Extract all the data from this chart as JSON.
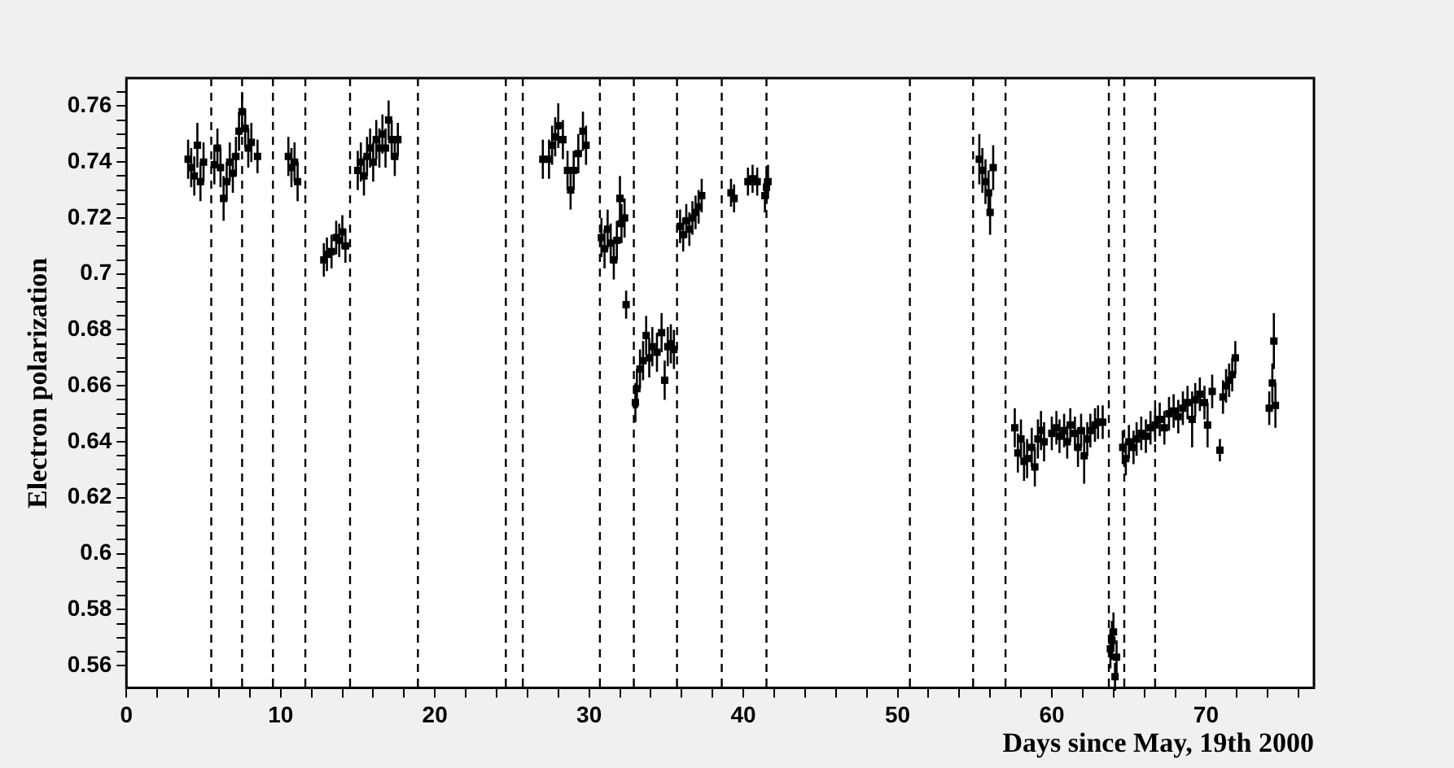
{
  "chart_data": {
    "type": "scatter",
    "xlabel": "Days since May, 19th 2000",
    "ylabel": "Electron polarization",
    "marker": "square",
    "legend": false,
    "grid": false,
    "xlim": [
      0,
      77
    ],
    "ylim": [
      0.552,
      0.77
    ],
    "xticks": [
      0,
      {
        "value": 2,
        "label": null
      },
      {
        "value": 4,
        "label": null
      },
      {
        "value": 6,
        "label": null
      },
      {
        "value": 8,
        "label": null
      },
      10,
      {
        "value": 12,
        "label": null
      },
      {
        "value": 14,
        "label": null
      },
      {
        "value": 16,
        "label": null
      },
      {
        "value": 18,
        "label": null
      },
      20,
      {
        "value": 22,
        "label": null
      },
      {
        "value": 24,
        "label": null
      },
      {
        "value": 26,
        "label": null
      },
      {
        "value": 28,
        "label": null
      },
      30,
      {
        "value": 32,
        "label": null
      },
      {
        "value": 34,
        "label": null
      },
      {
        "value": 36,
        "label": null
      },
      {
        "value": 38,
        "label": null
      },
      40,
      {
        "value": 42,
        "label": null
      },
      {
        "value": 44,
        "label": null
      },
      {
        "value": 46,
        "label": null
      },
      {
        "value": 48,
        "label": null
      },
      50,
      {
        "value": 52,
        "label": null
      },
      {
        "value": 54,
        "label": null
      },
      {
        "value": 56,
        "label": null
      },
      {
        "value": 58,
        "label": null
      },
      60,
      {
        "value": 62,
        "label": null
      },
      {
        "value": 64,
        "label": null
      },
      {
        "value": 66,
        "label": null
      },
      {
        "value": 68,
        "label": null
      },
      70,
      {
        "value": 72,
        "label": null
      },
      {
        "value": 74,
        "label": null
      },
      {
        "value": 76,
        "label": null
      }
    ],
    "yticks": [
      0.56,
      {
        "value": 0.565,
        "label": null
      },
      {
        "value": 0.57,
        "label": null
      },
      {
        "value": 0.575,
        "label": null
      },
      0.58,
      {
        "value": 0.585,
        "label": null
      },
      {
        "value": 0.59,
        "label": null
      },
      {
        "value": 0.595,
        "label": null
      },
      0.6,
      {
        "value": 0.605,
        "label": null
      },
      {
        "value": 0.61,
        "label": null
      },
      {
        "value": 0.615,
        "label": null
      },
      0.62,
      {
        "value": 0.625,
        "label": null
      },
      {
        "value": 0.63,
        "label": null
      },
      {
        "value": 0.635,
        "label": null
      },
      0.64,
      {
        "value": 0.645,
        "label": null
      },
      {
        "value": 0.65,
        "label": null
      },
      {
        "value": 0.655,
        "label": null
      },
      0.66,
      {
        "value": 0.665,
        "label": null
      },
      {
        "value": 0.67,
        "label": null
      },
      {
        "value": 0.675,
        "label": null
      },
      0.68,
      {
        "value": 0.685,
        "label": null
      },
      {
        "value": 0.69,
        "label": null
      },
      {
        "value": 0.695,
        "label": null
      },
      0.7,
      {
        "value": 0.705,
        "label": null
      },
      {
        "value": 0.71,
        "label": null
      },
      {
        "value": 0.715,
        "label": null
      },
      0.72,
      {
        "value": 0.725,
        "label": null
      },
      {
        "value": 0.73,
        "label": null
      },
      {
        "value": 0.735,
        "label": null
      },
      0.74,
      {
        "value": 0.745,
        "label": null
      },
      {
        "value": 0.75,
        "label": null
      },
      {
        "value": 0.755,
        "label": null
      },
      0.76,
      {
        "value": 0.765,
        "label": null
      }
    ],
    "ref_lines": [
      {
        "axis": "x",
        "value": 5.5,
        "line_style": "dashed",
        "color": "#000000"
      },
      {
        "axis": "x",
        "value": 7.5,
        "line_style": "dashed",
        "color": "#000000"
      },
      {
        "axis": "x",
        "value": 9.5,
        "line_style": "dashed",
        "color": "#000000"
      },
      {
        "axis": "x",
        "value": 11.6,
        "line_style": "dashed",
        "color": "#000000"
      },
      {
        "axis": "x",
        "value": 14.5,
        "line_style": "dashed",
        "color": "#000000"
      },
      {
        "axis": "x",
        "value": 18.9,
        "line_style": "dashed",
        "color": "#000000"
      },
      {
        "axis": "x",
        "value": 24.6,
        "line_style": "dashed",
        "color": "#000000"
      },
      {
        "axis": "x",
        "value": 25.7,
        "line_style": "dashed",
        "color": "#000000"
      },
      {
        "axis": "x",
        "value": 30.7,
        "line_style": "dashed",
        "color": "#000000"
      },
      {
        "axis": "x",
        "value": 32.9,
        "line_style": "dashed",
        "color": "#000000"
      },
      {
        "axis": "x",
        "value": 35.7,
        "line_style": "dashed",
        "color": "#000000"
      },
      {
        "axis": "x",
        "value": 38.6,
        "line_style": "dashed",
        "color": "#000000"
      },
      {
        "axis": "x",
        "value": 41.5,
        "line_style": "dashed",
        "color": "#000000"
      },
      {
        "axis": "x",
        "value": 50.8,
        "line_style": "dashed",
        "color": "#000000"
      },
      {
        "axis": "x",
        "value": 54.9,
        "line_style": "dashed",
        "color": "#000000"
      },
      {
        "axis": "x",
        "value": 57.0,
        "line_style": "dashed",
        "color": "#000000"
      },
      {
        "axis": "x",
        "value": 63.7,
        "line_style": "dashed",
        "color": "#000000"
      },
      {
        "axis": "x",
        "value": 64.7,
        "line_style": "dashed",
        "color": "#000000"
      },
      {
        "axis": "x",
        "value": 66.7,
        "line_style": "dashed",
        "color": "#000000"
      }
    ],
    "series": [
      {
        "color": "#000000",
        "x": [
          4.0,
          4.2,
          4.4,
          4.6,
          4.8,
          5.0,
          5.7,
          5.9,
          6.1,
          6.3,
          6.5,
          6.7,
          6.9,
          7.1,
          7.3,
          7.5,
          7.7,
          7.9,
          8.1,
          8.5,
          10.5,
          10.7,
          10.9,
          11.1,
          12.8,
          13.0,
          13.3,
          13.6,
          13.8,
          14.0,
          14.2,
          15.0,
          15.2,
          15.4,
          15.6,
          15.8,
          16.0,
          16.2,
          16.4,
          16.6,
          16.8,
          17.0,
          17.2,
          17.4,
          17.6,
          27.0,
          27.4,
          27.6,
          27.8,
          28.0,
          28.3,
          28.6,
          28.8,
          29.0,
          29.3,
          29.6,
          29.8,
          30.8,
          31.0,
          31.2,
          31.4,
          31.6,
          31.8,
          32.0,
          32.1,
          32.3,
          32.4,
          33.0,
          33.1,
          33.3,
          33.5,
          33.7,
          33.9,
          34.1,
          34.4,
          34.7,
          34.9,
          35.1,
          35.3,
          35.5,
          35.9,
          36.1,
          36.3,
          36.5,
          36.7,
          36.9,
          37.1,
          37.3,
          39.2,
          39.4,
          40.3,
          40.6,
          40.9,
          41.4,
          41.5,
          41.6,
          55.3,
          55.5,
          55.7,
          55.9,
          56.0,
          56.2,
          57.6,
          57.8,
          58.0,
          58.2,
          58.4,
          58.7,
          58.9,
          59.1,
          59.3,
          59.5,
          60.0,
          60.3,
          60.5,
          60.8,
          61.0,
          61.2,
          61.5,
          61.7,
          61.9,
          62.1,
          62.3,
          62.5,
          62.8,
          63.0,
          63.3,
          63.8,
          63.9,
          64.0,
          64.1,
          64.2,
          64.6,
          64.8,
          65.0,
          65.3,
          65.5,
          65.8,
          66.1,
          66.4,
          66.7,
          67.0,
          67.3,
          67.6,
          67.9,
          68.2,
          68.5,
          68.8,
          69.1,
          69.3,
          69.6,
          69.9,
          70.1,
          70.4,
          70.9,
          71.1,
          71.3,
          71.5,
          71.7,
          71.9,
          74.1,
          74.3,
          74.4,
          74.5
        ],
        "values": [
          0.741,
          0.738,
          0.735,
          0.746,
          0.733,
          0.74,
          0.739,
          0.745,
          0.738,
          0.727,
          0.733,
          0.74,
          0.736,
          0.742,
          0.751,
          0.758,
          0.752,
          0.745,
          0.747,
          0.742,
          0.742,
          0.738,
          0.74,
          0.733,
          0.705,
          0.707,
          0.708,
          0.713,
          0.712,
          0.715,
          0.71,
          0.737,
          0.74,
          0.735,
          0.742,
          0.745,
          0.74,
          0.748,
          0.745,
          0.75,
          0.745,
          0.755,
          0.748,
          0.742,
          0.748,
          0.741,
          0.741,
          0.746,
          0.749,
          0.753,
          0.748,
          0.737,
          0.73,
          0.737,
          0.743,
          0.751,
          0.746,
          0.713,
          0.709,
          0.716,
          0.711,
          0.705,
          0.712,
          0.727,
          0.718,
          0.72,
          0.689,
          0.654,
          0.659,
          0.666,
          0.669,
          0.678,
          0.67,
          0.674,
          0.672,
          0.679,
          0.662,
          0.674,
          0.675,
          0.673,
          0.717,
          0.714,
          0.719,
          0.716,
          0.72,
          0.722,
          0.724,
          0.728,
          0.729,
          0.727,
          0.733,
          0.734,
          0.733,
          0.728,
          0.731,
          0.733,
          0.741,
          0.737,
          0.733,
          0.729,
          0.722,
          0.738,
          0.645,
          0.636,
          0.641,
          0.633,
          0.634,
          0.638,
          0.631,
          0.641,
          0.644,
          0.64,
          0.643,
          0.645,
          0.642,
          0.644,
          0.64,
          0.646,
          0.643,
          0.638,
          0.644,
          0.635,
          0.641,
          0.644,
          0.646,
          0.647,
          0.647,
          0.566,
          0.569,
          0.572,
          0.556,
          0.563,
          0.638,
          0.634,
          0.64,
          0.638,
          0.641,
          0.643,
          0.642,
          0.645,
          0.646,
          0.648,
          0.645,
          0.65,
          0.651,
          0.649,
          0.652,
          0.654,
          0.648,
          0.655,
          0.657,
          0.654,
          0.646,
          0.658,
          0.637,
          0.656,
          0.66,
          0.662,
          0.664,
          0.67,
          0.652,
          0.661,
          0.676,
          0.653
        ],
        "errors": [
          0.007,
          0.007,
          0.007,
          0.008,
          0.007,
          0.007,
          0.007,
          0.007,
          0.007,
          0.008,
          0.007,
          0.007,
          0.007,
          0.007,
          0.007,
          0.007,
          0.007,
          0.007,
          0.007,
          0.006,
          0.007,
          0.007,
          0.007,
          0.007,
          0.006,
          0.006,
          0.006,
          0.006,
          0.006,
          0.006,
          0.006,
          0.007,
          0.007,
          0.007,
          0.007,
          0.007,
          0.007,
          0.007,
          0.007,
          0.007,
          0.007,
          0.007,
          0.007,
          0.007,
          0.006,
          0.007,
          0.007,
          0.007,
          0.007,
          0.008,
          0.007,
          0.007,
          0.007,
          0.007,
          0.007,
          0.007,
          0.007,
          0.007,
          0.007,
          0.007,
          0.007,
          0.007,
          0.007,
          0.008,
          0.007,
          0.007,
          0.005,
          0.007,
          0.007,
          0.007,
          0.007,
          0.007,
          0.007,
          0.007,
          0.007,
          0.007,
          0.007,
          0.007,
          0.007,
          0.007,
          0.006,
          0.006,
          0.006,
          0.006,
          0.006,
          0.006,
          0.006,
          0.006,
          0.005,
          0.005,
          0.005,
          0.005,
          0.005,
          0.006,
          0.006,
          0.006,
          0.009,
          0.008,
          0.008,
          0.008,
          0.008,
          0.008,
          0.007,
          0.007,
          0.007,
          0.007,
          0.007,
          0.007,
          0.007,
          0.007,
          0.007,
          0.007,
          0.006,
          0.006,
          0.006,
          0.006,
          0.006,
          0.006,
          0.006,
          0.007,
          0.006,
          0.01,
          0.006,
          0.006,
          0.006,
          0.006,
          0.006,
          0.007,
          0.007,
          0.007,
          0.005,
          0.006,
          0.006,
          0.006,
          0.006,
          0.006,
          0.006,
          0.006,
          0.006,
          0.006,
          0.006,
          0.006,
          0.006,
          0.006,
          0.006,
          0.006,
          0.006,
          0.006,
          0.01,
          0.006,
          0.006,
          0.006,
          0.008,
          0.006,
          0.004,
          0.006,
          0.006,
          0.006,
          0.006,
          0.006,
          0.006,
          0.007,
          0.01,
          0.008
        ]
      }
    ]
  }
}
